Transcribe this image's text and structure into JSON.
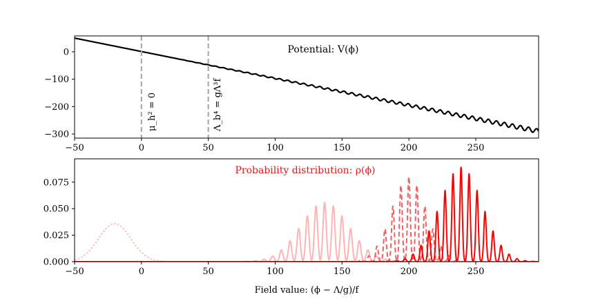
{
  "chart_data": [
    {
      "type": "line",
      "title": "Potential: V(ϕ)",
      "title_color": "#000000",
      "xlabel": "",
      "ylabel": "",
      "xlim": [
        -50,
        297
      ],
      "ylim": [
        -315,
        58
      ],
      "xticks": [
        -50,
        0,
        50,
        100,
        150,
        200,
        250
      ],
      "xtick_labels": [
        "−50",
        "0",
        "50",
        "100",
        "150",
        "200",
        "250"
      ],
      "yticks": [
        0,
        -100,
        -200,
        -300
      ],
      "ytick_labels": [
        "0",
        "−100",
        "−200",
        "−300"
      ],
      "series": [
        {
          "style": "solid",
          "color": "#000000",
          "linear_start": [
            -50,
            50
          ],
          "linear_end": [
            297,
            -290
          ],
          "oscillation_amplitude_max": 8
        }
      ],
      "vlines": [
        {
          "x": 0,
          "label": "μ_h² = 0",
          "color": "#aaaaaa",
          "style": "dashed"
        },
        {
          "x": 50,
          "label": "Λ_b⁴ = gΛ³f",
          "color": "#aaaaaa",
          "style": "dashed"
        }
      ],
      "grid": false
    },
    {
      "type": "line",
      "title": "Probability distribution: ρ(ϕ)",
      "title_color": "#e8151b",
      "xlabel": "Field value: (ϕ − Λ/g)/f",
      "ylabel": "",
      "xlim": [
        -50,
        297
      ],
      "ylim": [
        0,
        0.097
      ],
      "xticks": [
        -50,
        0,
        50,
        100,
        150,
        200,
        250
      ],
      "xtick_labels": [
        "−50",
        "0",
        "50",
        "100",
        "150",
        "200",
        "250"
      ],
      "yticks": [
        0,
        0.025,
        0.05,
        0.075
      ],
      "ytick_labels": [
        "0.000",
        "0.025",
        "0.050",
        "0.075"
      ],
      "series": [
        {
          "style": "dotted",
          "color": "#ffb3b3",
          "kind": "gaussian",
          "center": -20,
          "width": 12,
          "peak": 0.036
        },
        {
          "style": "solid",
          "color": "#ffb3b3",
          "kind": "comb",
          "center": 137,
          "width": 18,
          "peak": 0.056,
          "spacing": 6.5,
          "spike_width": 1.2
        },
        {
          "style": "dashed",
          "color": "#f06060",
          "kind": "comb",
          "center": 200,
          "width": 13,
          "peak": 0.08,
          "spacing": 6,
          "spike_width": 1.0
        },
        {
          "style": "solid",
          "color": "#ff0000",
          "kind": "comb",
          "center": 239,
          "width": 16,
          "peak": 0.089,
          "spacing": 6,
          "spike_width": 0.9
        }
      ],
      "grid": false
    }
  ]
}
